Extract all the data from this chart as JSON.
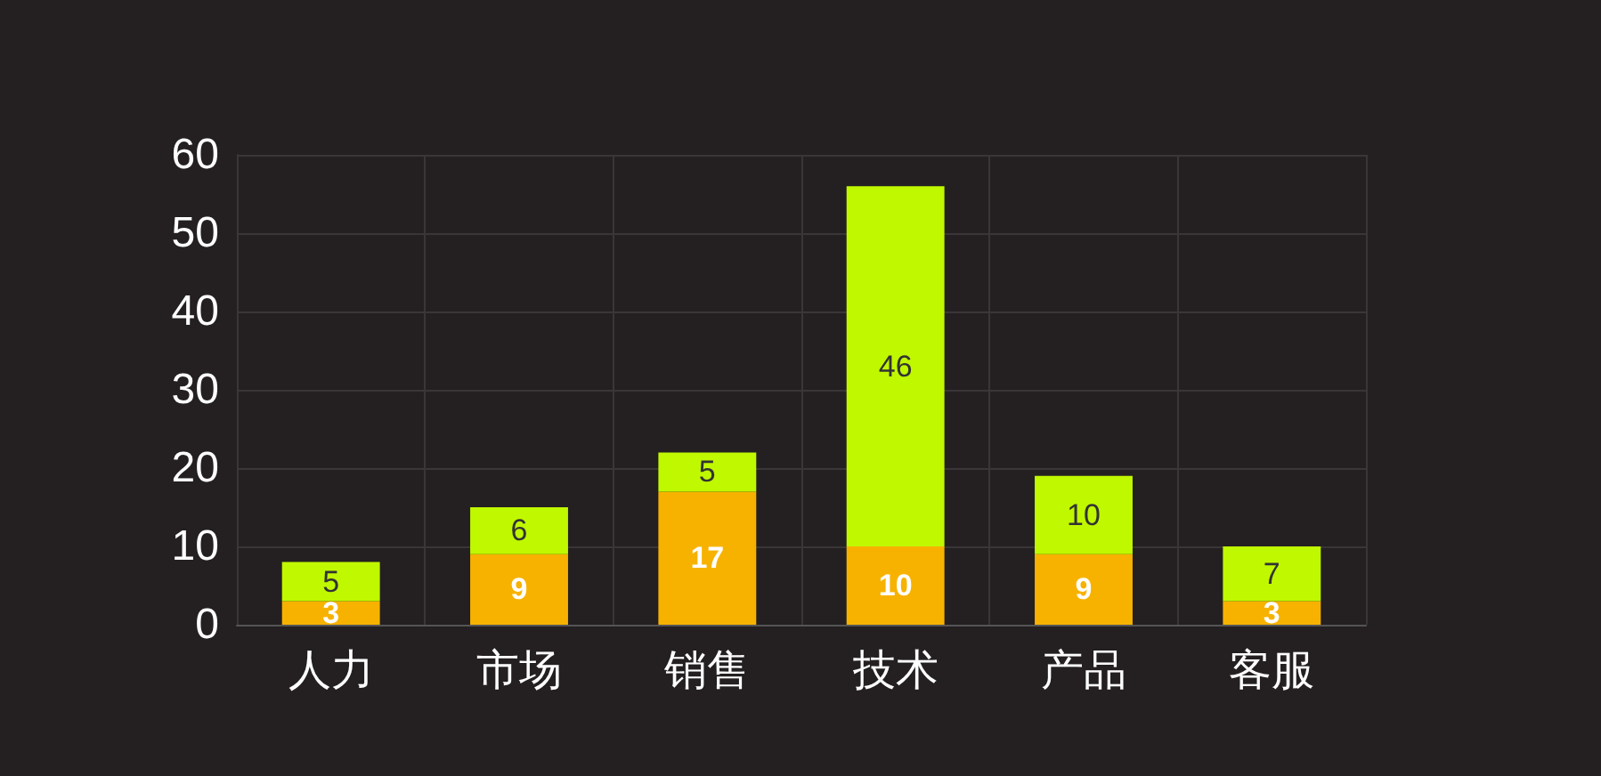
{
  "chart_data": {
    "type": "bar",
    "stacked": true,
    "categories": [
      "人力",
      "市场",
      "销售",
      "技术",
      "产品",
      "客服"
    ],
    "series": [
      {
        "color": "#f7b200",
        "values": [
          3,
          9,
          17,
          10,
          9,
          3
        ]
      },
      {
        "color": "#c0f800",
        "values": [
          5,
          6,
          5,
          46,
          10,
          7
        ]
      }
    ],
    "ylim": [
      0,
      60
    ],
    "yticks": [
      0,
      10,
      20,
      30,
      40,
      50,
      60
    ],
    "grid": true,
    "data_labels": true
  }
}
